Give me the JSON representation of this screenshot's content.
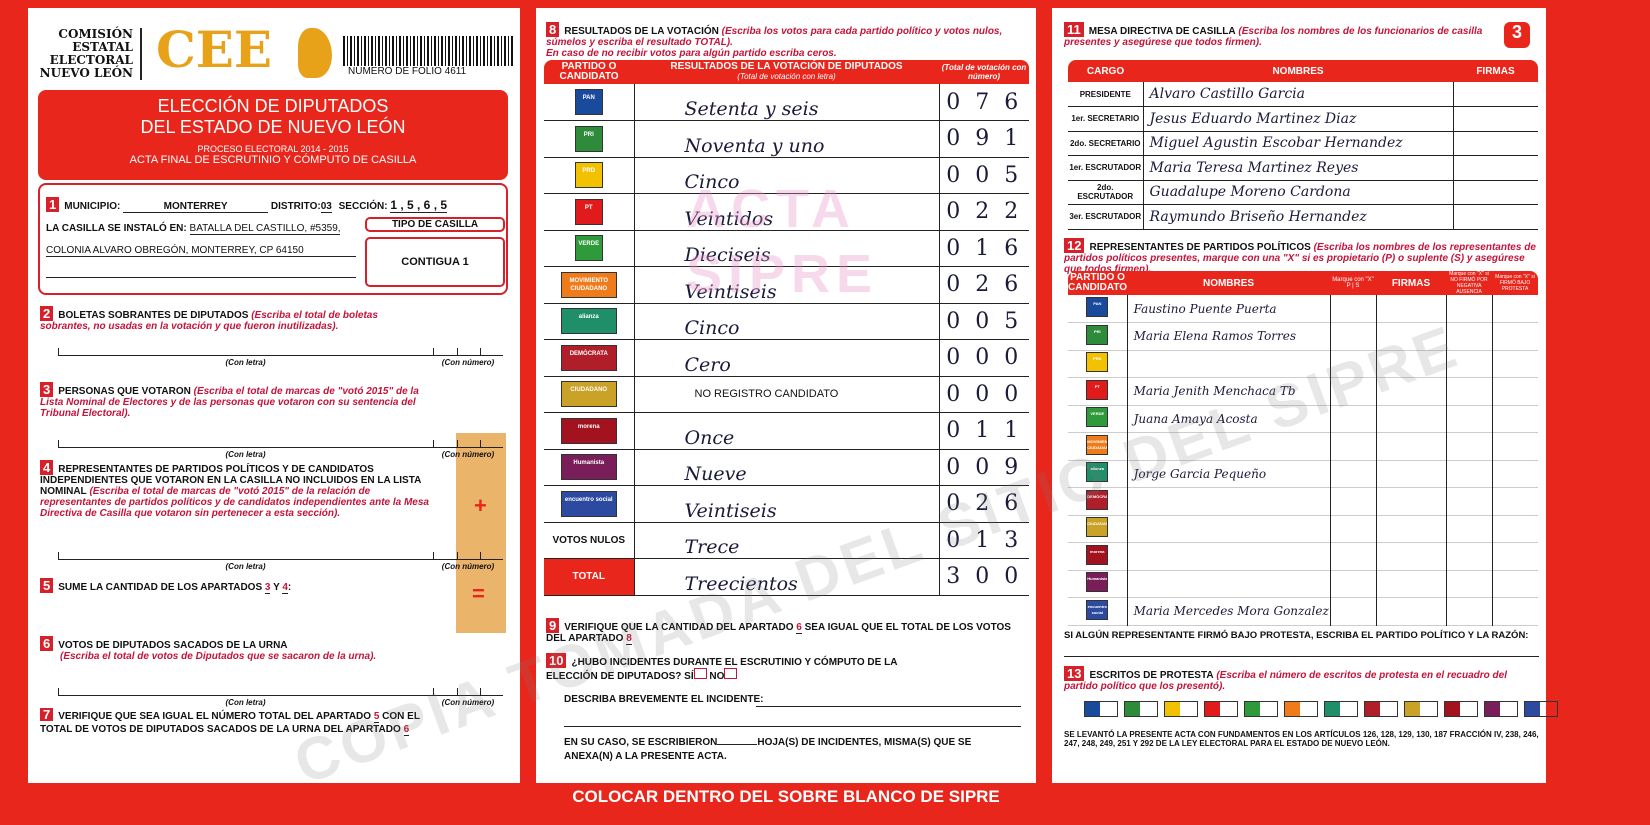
{
  "header": {
    "org_lines": [
      "COMISIÓN",
      "ESTATAL",
      "ELECTORAL",
      "NUEVO LEÓN"
    ],
    "logo": "CEE",
    "folio": "NUMERO DE FOLIO 4611",
    "title1": "ELECCIÓN DE DIPUTADOS",
    "title2": "DEL ESTADO DE NUEVO LEÓN",
    "subtitle1": "PROCESO ELECTORAL 2014 - 2015",
    "subtitle2": "ACTA FINAL DE ESCRUTINIO Y CÓMPUTO DE CASILLA",
    "page_number": "3"
  },
  "s1": {
    "num": "1",
    "municipio_label": "MUNICIPIO:",
    "municipio": "MONTERREY",
    "distrito_label": "DISTRITO:",
    "distrito": "03",
    "seccion_label": "SECCIÓN:",
    "seccion": "1 , 5 , 6 , 5",
    "instalo_label": "LA CASILLA SE INSTALÓ EN:",
    "direccion1": "BATALLA DEL CASTILLO, #5359,",
    "direccion2": "COLONIA ALVARO OBREGÓN, MONTERREY, CP 64150",
    "tipo_label": "TIPO DE CASILLA",
    "tipo": "CONTIGUA 1"
  },
  "labels": {
    "con_letra": "(Con letra)",
    "con_numero": "(Con número)",
    "plus": "+",
    "equals": "="
  },
  "s2": {
    "num": "2",
    "title": "BOLETAS SOBRANTES DE DIPUTADOS",
    "inst": "(Escriba el total de boletas sobrantes, no usadas en la votación y que fueron inutilizadas)."
  },
  "s3": {
    "num": "3",
    "title": "PERSONAS QUE VOTARON",
    "inst": "(Escriba el total de marcas de \"votó 2015\" de la Lista Nominal de Electores y de las personas que votaron con su sentencia del Tribunal Electoral)."
  },
  "s4": {
    "num": "4",
    "title": "REPRESENTANTES DE PARTIDOS POLÍTICOS Y DE CANDIDATOS INDEPENDIENTES QUE VOTARON EN LA CASILLA NO INCLUIDOS EN LA LISTA NOMINAL",
    "inst": "(Escriba el total de marcas de \"votó 2015\" de la relación de representantes de partidos políticos y de candidatos independientes ante la Mesa Directiva de Casilla que votaron sin pertenecer a esta sección)."
  },
  "s5": {
    "num": "5",
    "title": "SUME LA CANTIDAD DE LOS APARTADOS",
    "a": "3",
    "y": "Y",
    "b": "4",
    ":": ":"
  },
  "s6": {
    "num": "6",
    "title": "VOTOS DE DIPUTADOS SACADOS DE LA URNA",
    "inst": "(Escriba el total de votos de Diputados que se sacaron de la urna)."
  },
  "s7": {
    "num": "7",
    "text1": "VERIFIQUE QUE SEA IGUAL EL NÚMERO TOTAL DEL APARTADO",
    "a": "5",
    "text2": "CON EL TOTAL DE VOTOS DE DIPUTADOS SACADOS DE LA URNA",
    "text3": "DEL APARTADO",
    "b": "6"
  },
  "s8": {
    "num": "8",
    "title": "RESULTADOS DE LA VOTACIÓN",
    "inst1": "(Escriba los votos para cada partido político y votos nulos, súmelos y escriba el resultado TOTAL).",
    "inst2": "En caso de no recibir votos para algún partido escriba ceros.",
    "col1": "PARTIDO O CANDIDATO",
    "col2": "RESULTADOS DE LA VOTACIÓN DE DIPUTADOS",
    "col2_sub": "(Total de votación con letra)",
    "col3": "(Total de votación con número)",
    "rows": [
      {
        "party": "PAN",
        "color": "#1a4a9c",
        "letra": "Setenta y seis",
        "numero": "0 7 6"
      },
      {
        "party": "PRI",
        "color": "#2e8b3a",
        "letra": "Noventa y uno",
        "numero": "0 9 1"
      },
      {
        "party": "PRD",
        "color": "#f2c200",
        "letra": "Cinco",
        "numero": "0 0 5"
      },
      {
        "party": "PT",
        "color": "#e11b1b",
        "letra": "Veintidos",
        "numero": "0 2 2"
      },
      {
        "party": "VERDE",
        "color": "#2f9a3a",
        "letra": "Dieciseis",
        "numero": "0 1 6"
      },
      {
        "party": "MOVIMIENTO CIUDADANO",
        "color": "#f07b1a",
        "letra": "Veintiseis",
        "numero": "0 2 6"
      },
      {
        "party": "alianza",
        "color": "#1f8f6a",
        "letra": "Cinco",
        "numero": "0 0 5"
      },
      {
        "party": "DEMÓCRATA",
        "color": "#b01e2a",
        "letra": "Cero",
        "numero": "0 0 0"
      },
      {
        "party": "CIUDADANO",
        "color": "#c9a227",
        "letra": "NO REGISTRO CANDIDATO",
        "numero": "0 0 0"
      },
      {
        "party": "morena",
        "color": "#a3121f",
        "letra": "Once",
        "numero": "0 1 1"
      },
      {
        "party": "Humanista",
        "color": "#7a1e5a",
        "letra": "Nueve",
        "numero": "0 0 9"
      },
      {
        "party": "encuentro social",
        "color": "#2b4aa0",
        "letra": "Veintiseis",
        "numero": "0 2 6"
      },
      {
        "party": "VOTOS NULOS",
        "color": "",
        "letra": "Trece",
        "numero": "0 1 3"
      },
      {
        "party": "TOTAL",
        "color": "",
        "letra": "Treecientos",
        "numero": "3 0 0"
      }
    ]
  },
  "s9": {
    "num": "9",
    "text1": "VERIFIQUE QUE LA CANTIDAD DEL APARTADO",
    "a": "6",
    "text2": "SEA IGUAL QUE EL TOTAL DE LOS VOTOS DEL APARTADO",
    "b": "8"
  },
  "s10": {
    "num": "10",
    "q": "¿HUBO INCIDENTES DURANTE EL ESCRUTINIO Y CÓMPUTO DE LA ELECCIÓN DE DIPUTADOS?",
    "si": "SÍ",
    "no": "NO",
    "describe": "DESCRIBA BREVEMENTE EL INCIDENTE:",
    "hojas1": "EN SU CASO, SE ESCRIBIERON",
    "hojas2": "HOJA(S) DE INCIDENTES, MISMA(S) QUE SE ANEXA(N) A LA PRESENTE ACTA."
  },
  "footer": "COLOCAR DENTRO DEL SOBRE BLANCO DE SIPRE",
  "s11": {
    "num": "11",
    "title": "MESA DIRECTIVA DE CASILLA",
    "inst": "(Escriba los nombres de los funcionarios de casilla presentes y asegúrese que todos firmen).",
    "col1": "CARGO",
    "col2": "NOMBRES",
    "col3": "FIRMAS",
    "rows": [
      {
        "cargo": "PRESIDENTE",
        "nombre": "Alvaro Castillo Garcia"
      },
      {
        "cargo": "1er. SECRETARIO",
        "nombre": "Jesus Eduardo Martinez Diaz"
      },
      {
        "cargo": "2do. SECRETARIO",
        "nombre": "Miguel Agustin Escobar Hernandez"
      },
      {
        "cargo": "1er. ESCRUTADOR",
        "nombre": "Maria Teresa Martinez Reyes"
      },
      {
        "cargo": "2do. ESCRUTADOR",
        "nombre": "Guadalupe Moreno Cardona"
      },
      {
        "cargo": "3er. ESCRUTADOR",
        "nombre": "Raymundo Briseño Hernandez"
      }
    ]
  },
  "s12": {
    "num": "12",
    "title": "REPRESENTANTES DE PARTIDOS POLÍTICOS",
    "inst": "(Escriba los nombres de los representantes de partidos políticos presentes, marque con una \"X\" si es propietario (P) o suplente (S) y asegúrese que todos firmen).",
    "col1": "PARTIDO O CANDIDATO",
    "col2": "NOMBRES",
    "marque": "Marque con \"X\"",
    "p": "P",
    "s": "S",
    "col4": "FIRMAS",
    "col5": "Marque con \"X\" si NO FIRMÓ POR",
    "col5a": "NEGATIVA",
    "col5b": "AUSENCIA",
    "col6": "Marque con \"X\" si FIRMÓ BAJO PROTESTA",
    "rows": [
      {
        "party": "PAN",
        "nombre": "Faustino Puente Puerta"
      },
      {
        "party": "PRI",
        "nombre": "Maria Elena Ramos Torres"
      },
      {
        "party": "PRD",
        "nombre": ""
      },
      {
        "party": "PT",
        "nombre": "Maria Jenith Menchaca Tb"
      },
      {
        "party": "VERDE",
        "nombre": "Juana Amaya Acosta"
      },
      {
        "party": "MOVIMIENTO CIUDADANO",
        "nombre": ""
      },
      {
        "party": "alianza",
        "nombre": "Jorge Garcia Pequeño"
      },
      {
        "party": "DEMÓCRATA",
        "nombre": ""
      },
      {
        "party": "CIUDADANO",
        "nombre": ""
      },
      {
        "party": "morena",
        "nombre": ""
      },
      {
        "party": "Humanista",
        "nombre": ""
      },
      {
        "party": "encuentro social",
        "nombre": "Maria Mercedes Mora Gonzalez"
      }
    ],
    "protesta_note": "SI ALGÚN REPRESENTANTE FIRMÓ BAJO PROTESTA, ESCRIBA EL PARTIDO POLÍTICO Y LA RAZÓN:"
  },
  "s13": {
    "num": "13",
    "title": "ESCRITOS DE PROTESTA",
    "inst": "(Escriba el número de escritos de protesta en el recuadro del partido político que los presentó).",
    "legal": "SE LEVANTÓ LA PRESENTE ACTA CON FUNDAMENTOS EN LOS ARTÍCULOS 126, 128, 129, 130, 187 FRACCIÓN IV, 238, 246, 247, 248, 249, 251 Y 292 DE LA LEY ELECTORAL PARA EL ESTADO DE NUEVO LEÓN."
  },
  "watermarks": {
    "acta": "ACTA",
    "sipre": "SIPRE",
    "copia": "COPIA TOMADA DEL SITIO DEL SIPRE"
  }
}
